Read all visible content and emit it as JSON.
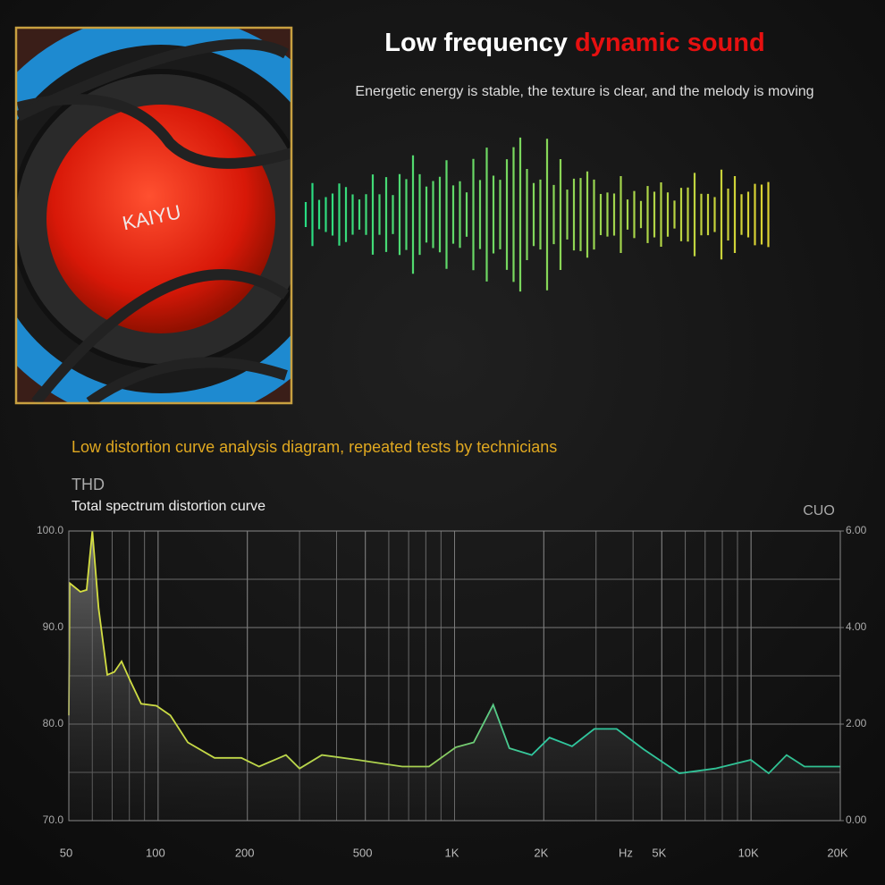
{
  "header": {
    "title_white": "Low frequency",
    "title_red": "dynamic sound",
    "subtitle": "Energetic energy is stable, the texture is clear, and the melody is moving",
    "logo": "KAIYU",
    "section_title": "Low distortion curve analysis diagram, repeated tests by technicians"
  },
  "chart_data": {
    "type": "line",
    "title": "THD",
    "subtitle": "Total spectrum distortion curve",
    "y2_label": "CUO",
    "x_unit": "Hz",
    "xscale": "log",
    "grid": true,
    "color": "#c8dc3c",
    "x": [
      50,
      50.3,
      54.7,
      57.4,
      60,
      63,
      67.4,
      71.2,
      75.3,
      80.2,
      87.7,
      98.7,
      110,
      126,
      155,
      191,
      219,
      270,
      300,
      357,
      470,
      666,
      820,
      1010,
      1160,
      1350,
      1530,
      1820,
      2090,
      2490,
      2960,
      3520,
      4340,
      5730,
      7570,
      9980,
      11470,
      13180,
      15140,
      20000
    ],
    "series": [
      {
        "name": "THD",
        "color": "#c8dc3c",
        "values": [
          80.9,
          94.6,
          93.7,
          93.9,
          100,
          92.0,
          85.1,
          85.4,
          86.5,
          84.6,
          82.1,
          81.9,
          80.9,
          78.1,
          76.5,
          76.5,
          75.6,
          76.8,
          75.4,
          76.8,
          76.3,
          75.6,
          75.6,
          77.6,
          78.1,
          82.0,
          77.5,
          76.8,
          78.6,
          77.7,
          79.5,
          79.5,
          77.4,
          74.9,
          75.4,
          76.3,
          74.9,
          76.8,
          75.6,
          75.6
        ]
      }
    ],
    "xlim": [
      50,
      20000
    ],
    "xticks": [
      50,
      100,
      200,
      500,
      {
        "value": 1000,
        "label": "1K"
      },
      {
        "value": 2000,
        "label": "2K"
      },
      {
        "value": 5000,
        "label": "5K"
      },
      {
        "value": 10000,
        "label": "10K"
      },
      {
        "value": 20000,
        "label": "20K"
      }
    ],
    "ylim": [
      70,
      100
    ],
    "yticks": [
      {
        "value": 70,
        "label": "70.0"
      },
      {
        "value": 80,
        "label": "80.0"
      },
      {
        "value": 90,
        "label": "90.0"
      },
      {
        "value": 100,
        "label": "100.0"
      }
    ],
    "y2lim": [
      0,
      6
    ],
    "y2ticks": [
      {
        "value": 0,
        "label": "0.00"
      },
      {
        "value": 2,
        "label": "2.00"
      },
      {
        "value": 4,
        "label": "4.00"
      },
      {
        "value": 6,
        "label": "6.00"
      }
    ]
  }
}
